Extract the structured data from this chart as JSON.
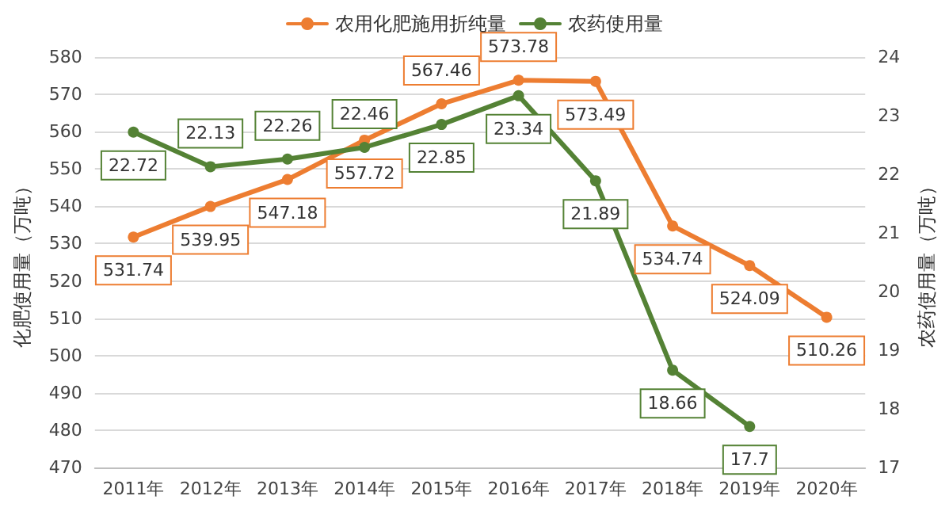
{
  "chart_data": {
    "type": "line",
    "categories": [
      "2011年",
      "2012年",
      "2013年",
      "2014年",
      "2015年",
      "2016年",
      "2017年",
      "2018年",
      "2019年",
      "2020年"
    ],
    "series": [
      {
        "name": "农用化肥施用折纯量",
        "color": "#ed7d31",
        "values": [
          531.74,
          539.95,
          547.18,
          557.72,
          567.46,
          573.78,
          573.49,
          534.74,
          524.09,
          510.26
        ]
      },
      {
        "name": "农药使用量",
        "color": "#548235",
        "axis": "y2",
        "values": [
          22.72,
          22.13,
          22.26,
          22.46,
          22.85,
          23.34,
          21.89,
          18.66,
          17.7,
          null
        ]
      }
    ],
    "ylabel": "化肥使用量（万吨）",
    "y2label": "农药使用量（万吨）",
    "ylim": [
      470,
      580
    ],
    "yticks": [
      470,
      480,
      490,
      500,
      510,
      520,
      530,
      540,
      550,
      560,
      570,
      580
    ],
    "y2lim": [
      17,
      24
    ],
    "y2ticks": [
      17,
      18,
      19,
      20,
      21,
      22,
      23,
      24
    ],
    "data_labels": true,
    "grid": "y",
    "legend": "top",
    "marker": "circle",
    "line_style": "solid"
  }
}
